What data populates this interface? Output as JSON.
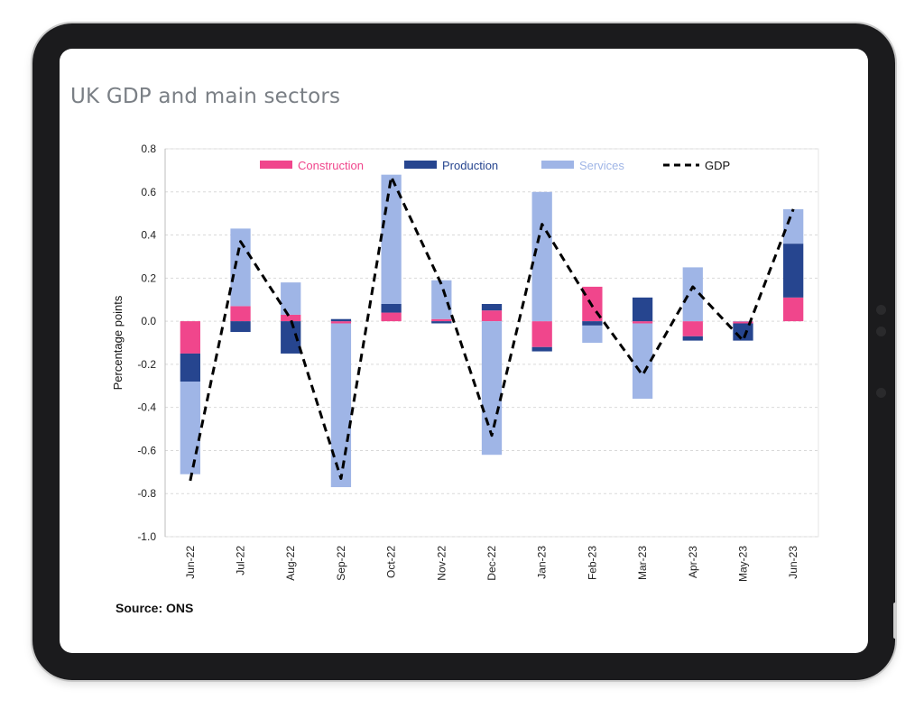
{
  "page": {
    "title": "UK GDP and main sectors",
    "source": "Source: ONS"
  },
  "colors": {
    "construction": "#f0468c",
    "production": "#26458f",
    "services": "#9fb5e6",
    "gdp": "#000000"
  },
  "chart_data": {
    "type": "bar",
    "stacked": true,
    "title": "",
    "xlabel": "",
    "ylabel": "Percentage points",
    "ylim": [
      -1.0,
      0.8
    ],
    "yticks": [
      "0.8",
      "0.6",
      "0.4",
      "0.2",
      "0.0",
      "-0.2",
      "-0.4",
      "-0.6",
      "-0.8",
      "-1.0"
    ],
    "grid": true,
    "legend": "top",
    "categories": [
      "Jun-22",
      "Jul-22",
      "Aug-22",
      "Sep-22",
      "Oct-22",
      "Nov-22",
      "Dec-22",
      "Jan-23",
      "Feb-23",
      "Mar-23",
      "Apr-23",
      "May-23",
      "Jun-23"
    ],
    "series": [
      {
        "name": "Construction",
        "kind": "bar",
        "values": [
          -0.15,
          0.07,
          0.03,
          -0.01,
          0.04,
          0.01,
          0.05,
          -0.12,
          0.16,
          -0.01,
          -0.07,
          -0.01,
          0.11
        ]
      },
      {
        "name": "Production",
        "kind": "bar",
        "values": [
          -0.13,
          -0.05,
          -0.15,
          0.01,
          0.04,
          -0.01,
          0.03,
          -0.02,
          -0.02,
          0.11,
          -0.02,
          -0.08,
          0.25
        ]
      },
      {
        "name": "Services",
        "kind": "bar",
        "values": [
          -0.43,
          0.36,
          0.15,
          -0.76,
          0.6,
          0.18,
          -0.62,
          0.6,
          -0.08,
          -0.35,
          0.25,
          0.0,
          0.16
        ]
      },
      {
        "name": "GDP",
        "kind": "line",
        "values": [
          -0.74,
          0.37,
          0.01,
          -0.73,
          0.67,
          0.17,
          -0.53,
          0.45,
          0.07,
          -0.25,
          0.16,
          -0.09,
          0.52
        ]
      }
    ]
  }
}
